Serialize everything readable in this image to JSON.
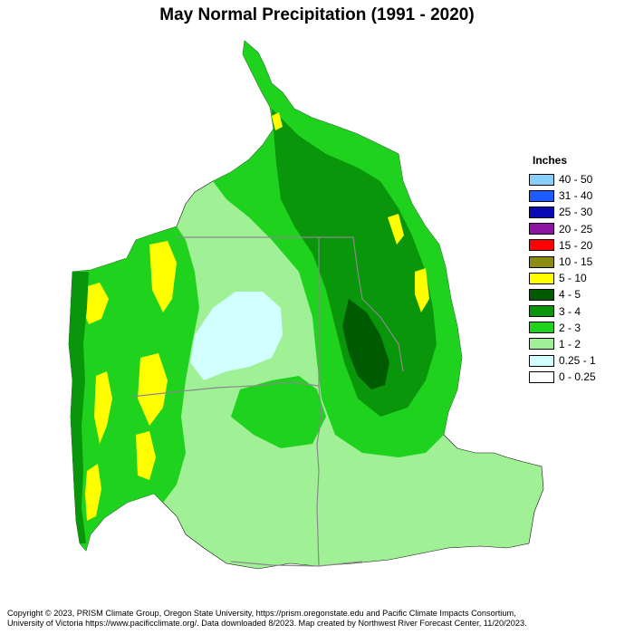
{
  "title": "May Normal Precipitation (1991 - 2020)",
  "legend": {
    "title": "Inches",
    "items": [
      {
        "label": "40 - 50",
        "color": "#87cefa"
      },
      {
        "label": "31 - 40",
        "color": "#1e5cff"
      },
      {
        "label": "25 - 30",
        "color": "#0a0ab4"
      },
      {
        "label": "20 - 25",
        "color": "#8c14a0"
      },
      {
        "label": "15 - 20",
        "color": "#ff0000"
      },
      {
        "label": "10 - 15",
        "color": "#8c8c14"
      },
      {
        "label": "5 - 10",
        "color": "#ffff00"
      },
      {
        "label": "4 - 5",
        "color": "#005a00"
      },
      {
        "label": "3 - 4",
        "color": "#0a960a"
      },
      {
        "label": "2 - 3",
        "color": "#1ed21e"
      },
      {
        "label": "1 - 2",
        "color": "#a0f096"
      },
      {
        "label": "0.25 - 1",
        "color": "#d2ffff"
      },
      {
        "label": "0 - 0.25",
        "color": "#ffffff"
      }
    ]
  },
  "footer": {
    "line1": "Copyright © 2023, PRISM Climate Group, Oregon State University, https://prism.oregonstate.edu and Pacific Climate Impacts Consortium,",
    "line2": "University of Victoria https://www.pacificclimate.org/.  Data downloaded 8/2023. Map created by Northwest River Forecast Center, 11/20/2023."
  }
}
